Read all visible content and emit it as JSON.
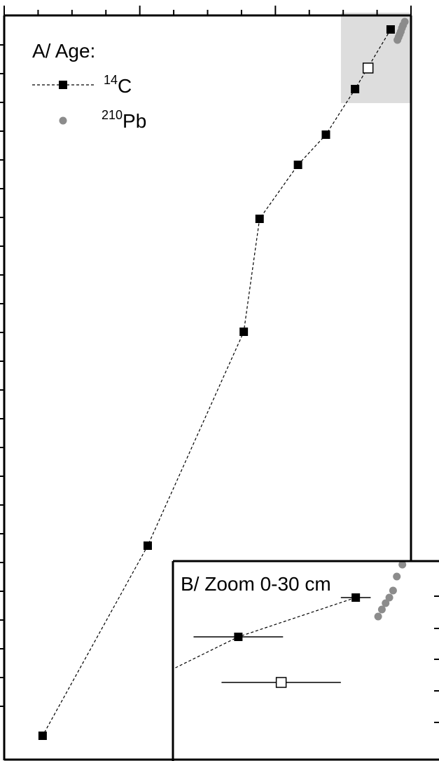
{
  "chart_data": [
    {
      "type": "scatter",
      "panel_label": "A/ Age:",
      "legend": {
        "placement": "top-left",
        "entries": [
          {
            "sup": "14",
            "text": "C",
            "marker": "filled-square",
            "line": "dashed"
          },
          {
            "sup": "210",
            "text": "Pb",
            "marker": "gray-circle"
          }
        ]
      },
      "series": [
        {
          "name": "14C",
          "style": "filled-square, dashed connecting line, horizontal error bars",
          "points": [
            {
              "x": 180,
              "y": 42,
              "xerr": 12
            },
            {
              "x": 495,
              "y": 127,
              "xerr": 20
            },
            {
              "x": 753,
              "y": 192,
              "xerr": 20
            },
            {
              "x": 1000,
              "y": 235,
              "xerr": 15
            },
            {
              "x": 1340,
              "y": 312,
              "xerr": 15
            },
            {
              "x": 1480,
              "y": 473,
              "xerr": 18
            },
            {
              "x": 2330,
              "y": 778,
              "xerr": 18
            },
            {
              "x": 3260,
              "y": 1049,
              "xerr": 20
            }
          ]
        },
        {
          "name": "14C (excluded)",
          "style": "open-square, horizontal error bar",
          "points": [
            {
              "x": 380,
              "y": 97,
              "xerr": 20
            }
          ]
        },
        {
          "name": "210Pb",
          "style": "gray circles",
          "points": [
            {
              "x": 55,
              "y": 31
            },
            {
              "x": 70,
              "y": 36
            },
            {
              "x": 80,
              "y": 40
            },
            {
              "x": 90,
              "y": 45
            },
            {
              "x": 100,
              "y": 49
            },
            {
              "x": 110,
              "y": 53
            },
            {
              "x": 120,
              "y": 57
            }
          ]
        }
      ],
      "highlight_region": {
        "x_range": [
          0,
          620
        ],
        "y_range": [
          18,
          147
        ],
        "color": "#dddddd"
      },
      "x_range": [
        0,
        3600
      ],
      "x_direction": "reversed",
      "y_range": [
        18,
        1080
      ],
      "y_direction": "downward",
      "ticks": {
        "x_major": 3,
        "x_minor": 12,
        "y_every": 41
      }
    },
    {
      "type": "scatter",
      "panel_label": "B/ Zoom 0-30 cm",
      "placement": "bottom-right inset",
      "series": [
        {
          "name": "14C",
          "style": "filled-square, dashed connecting line, horizontal error bars",
          "points": [
            {
              "x": 180,
              "y": 852,
              "xerr": 40
            },
            {
              "x": 495,
              "y": 908,
              "xerr": 120
            },
            {
              "x": 1000,
              "y": 1040,
              "xerr": 200
            }
          ]
        },
        {
          "name": "14C (excluded)",
          "style": "open-square, horizontal error bar",
          "points": [
            {
              "x": 380,
              "y": 973,
              "xerr": 160
            }
          ]
        },
        {
          "name": "210Pb",
          "style": "gray circles",
          "points": [
            {
              "x": 55,
              "y": 805
            },
            {
              "x": 70,
              "y": 822
            },
            {
              "x": 80,
              "y": 842
            },
            {
              "x": 90,
              "y": 852
            },
            {
              "x": 100,
              "y": 860
            },
            {
              "x": 110,
              "y": 869
            },
            {
              "x": 120,
              "y": 879
            }
          ]
        }
      ],
      "zoom_scale": 3.3,
      "y_right_ticks": [
        850,
        896,
        940,
        985,
        1030
      ]
    }
  ],
  "colors": {
    "axis": "#000000",
    "highlight": "#dddddd",
    "pb_marker": "#8c8c8c",
    "line": "#000000",
    "open_marker_fill": "#ffffff"
  }
}
